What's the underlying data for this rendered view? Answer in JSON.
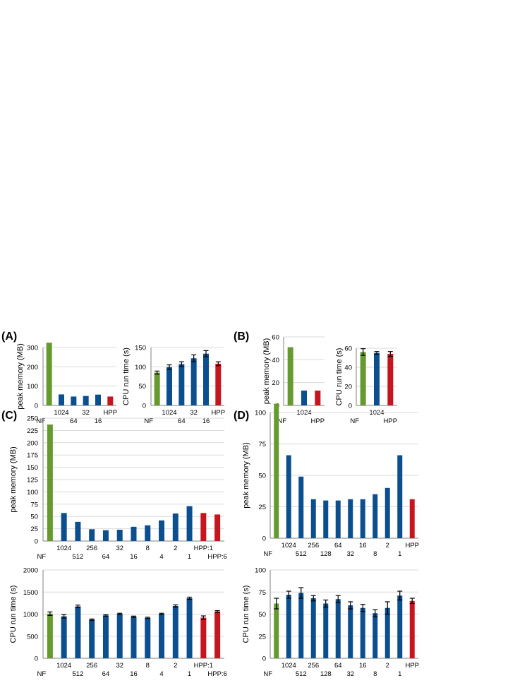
{
  "panels": {
    "A": "(A)",
    "B": "(B)",
    "C": "(C)",
    "D": "(D)"
  },
  "colors": {
    "nf": "#669a2e",
    "filter": "#0b4f8f",
    "hpp": "#c51620",
    "grid": "#d9d9d9",
    "axis": "#808080"
  },
  "chart_data": [
    {
      "id": "A-memory",
      "panel": "A",
      "type": "bar",
      "ylabel": "peak memory (MB)",
      "ylim": [
        0,
        300
      ],
      "yticks": [
        0,
        100,
        200,
        300
      ],
      "categories": [
        "NF",
        "1024",
        "64",
        "32",
        "16",
        "HPP"
      ],
      "values": [
        325,
        57,
        46,
        49,
        56,
        46
      ],
      "bar_colors": [
        "nf",
        "filter",
        "filter",
        "filter",
        "filter",
        "hpp"
      ],
      "grid": true
    },
    {
      "id": "A-cpu",
      "panel": "A",
      "type": "bar",
      "ylabel": "CPU run time (s)",
      "ylim": [
        0,
        150
      ],
      "yticks": [
        0,
        50,
        100,
        150
      ],
      "categories": [
        "NF",
        "1024",
        "64",
        "32",
        "16",
        "HPP"
      ],
      "values": [
        85,
        99,
        107,
        122,
        134,
        108
      ],
      "errors": [
        4,
        6,
        6,
        9,
        8,
        5
      ],
      "bar_colors": [
        "nf",
        "filter",
        "filter",
        "filter",
        "filter",
        "hpp"
      ],
      "grid": true
    },
    {
      "id": "B-memory",
      "panel": "B",
      "type": "bar",
      "ylabel": "peak memory (MB)",
      "ylim": [
        0,
        60
      ],
      "yticks": [
        0,
        20,
        40,
        60
      ],
      "categories": [
        "NF",
        "1024",
        "HPP"
      ],
      "values": [
        51,
        13,
        13
      ],
      "bar_colors": [
        "nf",
        "filter",
        "hpp"
      ],
      "grid": true
    },
    {
      "id": "B-cpu",
      "panel": "B",
      "type": "bar",
      "ylabel": "CPU run time (s)",
      "ylim": [
        0,
        60
      ],
      "yticks": [
        0,
        20,
        40,
        60
      ],
      "categories": [
        "NF",
        "1024",
        "HPP"
      ],
      "values": [
        56,
        55,
        54
      ],
      "errors": [
        3.5,
        1.5,
        2.5
      ],
      "bar_colors": [
        "nf",
        "filter",
        "hpp"
      ],
      "grid": true
    },
    {
      "id": "C-memory",
      "panel": "C",
      "type": "bar",
      "ylabel": "peak memory (MB)",
      "ylim": [
        0,
        250
      ],
      "yticks": [
        0,
        25,
        50,
        75,
        100,
        125,
        150,
        175,
        200,
        225,
        250
      ],
      "categories": [
        "NF",
        "1024",
        "512",
        "256",
        "64",
        "32",
        "16",
        "8",
        "4",
        "2",
        "1",
        "HPP:1",
        "HPP:6"
      ],
      "values": [
        237,
        57,
        39,
        24,
        22,
        23,
        29,
        32,
        42,
        56,
        71,
        57,
        54
      ],
      "bar_colors": [
        "nf",
        "filter",
        "filter",
        "filter",
        "filter",
        "filter",
        "filter",
        "filter",
        "filter",
        "filter",
        "filter",
        "hpp",
        "hpp"
      ],
      "grid": true
    },
    {
      "id": "C-cpu",
      "panel": "C",
      "type": "bar",
      "ylabel": "CPU run time (s)",
      "ylim": [
        0,
        2000
      ],
      "yticks": [
        0,
        500,
        1000,
        1500,
        2000
      ],
      "categories": [
        "NF",
        "1024",
        "512",
        "256",
        "64",
        "32",
        "16",
        "8",
        "4",
        "2",
        "1",
        "HPP:1",
        "HPP:6"
      ],
      "values": [
        1010,
        950,
        1175,
        875,
        970,
        1005,
        940,
        915,
        1005,
        1185,
        1360,
        920,
        1060
      ],
      "errors": [
        40,
        40,
        30,
        15,
        15,
        15,
        15,
        15,
        15,
        25,
        25,
        40,
        20
      ],
      "bar_colors": [
        "nf",
        "filter",
        "filter",
        "filter",
        "filter",
        "filter",
        "filter",
        "filter",
        "filter",
        "filter",
        "filter",
        "hpp",
        "hpp"
      ],
      "grid": true
    },
    {
      "id": "D-memory",
      "panel": "D",
      "type": "bar",
      "ylabel": "peak memory (MB)",
      "ylim": [
        0,
        100
      ],
      "yticks": [
        0,
        25,
        50,
        75,
        100
      ],
      "categories": [
        "NF",
        "1024",
        "512",
        "256",
        "128",
        "64",
        "32",
        "16",
        "8",
        "2",
        "1",
        "HPP"
      ],
      "values": [
        107,
        66,
        49,
        31,
        30,
        30,
        31,
        31,
        35,
        40,
        66,
        31
      ],
      "bar_colors": [
        "nf",
        "filter",
        "filter",
        "filter",
        "filter",
        "filter",
        "filter",
        "filter",
        "filter",
        "filter",
        "filter",
        "hpp"
      ],
      "grid": true
    },
    {
      "id": "D-cpu",
      "panel": "D",
      "type": "bar",
      "ylabel": "CPU run time (s)",
      "ylim": [
        0,
        100
      ],
      "yticks": [
        0,
        25,
        50,
        75,
        100
      ],
      "categories": [
        "NF",
        "1024",
        "512",
        "256",
        "128",
        "64",
        "32",
        "16",
        "8",
        "2",
        "1",
        "HPP"
      ],
      "values": [
        62,
        72,
        74,
        68,
        62,
        67,
        60,
        57,
        51,
        57,
        71,
        65
      ],
      "errors": [
        6,
        4,
        6,
        3,
        4,
        4,
        4,
        4,
        4,
        7,
        5,
        3
      ],
      "bar_colors": [
        "nf",
        "filter",
        "filter",
        "filter",
        "filter",
        "filter",
        "filter",
        "filter",
        "filter",
        "filter",
        "filter",
        "hpp"
      ],
      "grid": true
    }
  ]
}
